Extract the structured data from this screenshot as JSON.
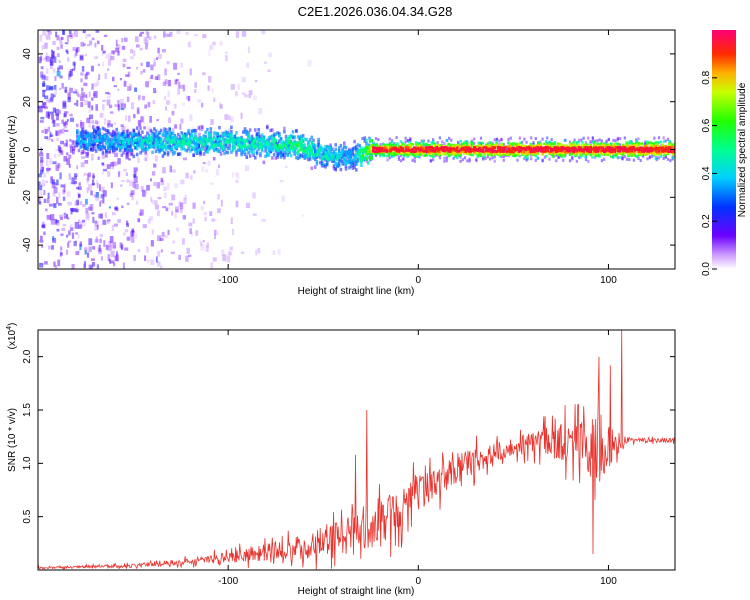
{
  "title": "C2E1.2026.036.04.34.G28",
  "chart_data": [
    {
      "type": "heatmap",
      "xlabel": "Height of straight line (km)",
      "ylabel": "Frequency (Hz)",
      "xlim": [
        -200,
        135
      ],
      "ylim": [
        -50,
        50
      ],
      "xticks": [
        -100,
        0,
        100
      ],
      "yticks": [
        -40,
        -20,
        0,
        20,
        40
      ],
      "colorbar": {
        "label": "Normalized spectral amplitude",
        "range": [
          0,
          1
        ],
        "ticks": [
          0.0,
          0.2,
          0.4,
          0.6,
          0.8
        ]
      },
      "ridge": [
        {
          "x": -175,
          "f": 4,
          "amp": 0.35
        },
        {
          "x": -150,
          "f": 3,
          "amp": 0.4
        },
        {
          "x": -125,
          "f": 3,
          "amp": 0.45
        },
        {
          "x": -100,
          "f": 3,
          "amp": 0.45
        },
        {
          "x": -80,
          "f": 2,
          "amp": 0.45
        },
        {
          "x": -65,
          "f": 2,
          "amp": 0.5
        },
        {
          "x": -50,
          "f": -2,
          "amp": 0.45
        },
        {
          "x": -35,
          "f": -4,
          "amp": 0.35
        },
        {
          "x": -25,
          "f": 0,
          "amp": 0.7
        },
        {
          "x": 0,
          "f": 0,
          "amp": 0.8
        },
        {
          "x": 50,
          "f": 0,
          "amp": 0.85
        },
        {
          "x": 100,
          "f": 0,
          "amp": 0.85
        },
        {
          "x": 135,
          "f": 0,
          "amp": 0.85
        }
      ]
    },
    {
      "type": "line",
      "xlabel": "Height of straight line (km)",
      "ylabel": "SNR (10 * v/v)",
      "yunit": "(x10",
      "yunit_exp": "4",
      "yunit_close": ")",
      "xlim": [
        -200,
        135
      ],
      "ylim": [
        0,
        2.25
      ],
      "xticks": [
        -100,
        0,
        100
      ],
      "yticks": [
        0.5,
        1.0,
        1.5,
        2.0
      ],
      "ytick_labels": [
        "0.5",
        "1.0",
        "1.5",
        "2.0"
      ],
      "color": "#e8322c",
      "envelope": [
        {
          "x": -200,
          "mean": 0.02,
          "noise": 0.01
        },
        {
          "x": -150,
          "mean": 0.04,
          "noise": 0.02
        },
        {
          "x": -120,
          "mean": 0.08,
          "noise": 0.04
        },
        {
          "x": -90,
          "mean": 0.14,
          "noise": 0.08
        },
        {
          "x": -60,
          "mean": 0.22,
          "noise": 0.15
        },
        {
          "x": -40,
          "mean": 0.32,
          "noise": 0.22
        },
        {
          "x": -20,
          "mean": 0.45,
          "noise": 0.3
        },
        {
          "x": 0,
          "mean": 0.72,
          "noise": 0.2
        },
        {
          "x": 20,
          "mean": 0.95,
          "noise": 0.18
        },
        {
          "x": 40,
          "mean": 1.1,
          "noise": 0.12
        },
        {
          "x": 60,
          "mean": 1.2,
          "noise": 0.12
        },
        {
          "x": 80,
          "mean": 1.2,
          "noise": 0.25
        },
        {
          "x": 95,
          "mean": 1.1,
          "noise": 0.4
        },
        {
          "x": 105,
          "mean": 1.2,
          "noise": 0.15
        },
        {
          "x": 110,
          "mean": 1.22,
          "noise": 0.03
        },
        {
          "x": 135,
          "mean": 1.22,
          "noise": 0.03
        }
      ],
      "peaks": [
        {
          "x": -27,
          "y": 1.5
        },
        {
          "x": -33,
          "y": 1.08
        },
        {
          "x": 72,
          "y": 1.42
        },
        {
          "x": 84,
          "y": 1.55
        },
        {
          "x": 95,
          "y": 2.0
        },
        {
          "x": 101,
          "y": 1.92
        },
        {
          "x": 107,
          "y": 2.25
        },
        {
          "x": 92,
          "y": 0.15
        }
      ]
    }
  ]
}
